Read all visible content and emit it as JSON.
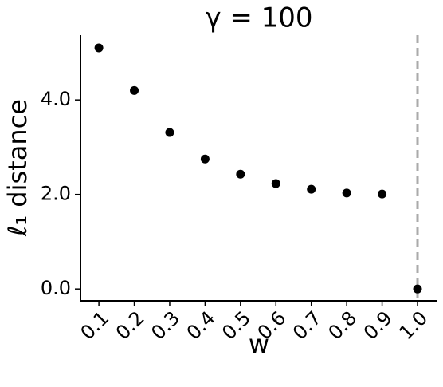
{
  "chart_data": {
    "type": "scatter",
    "title": "γ = 100",
    "xlabel": "w",
    "ylabel": "ℓ₁ distance",
    "x": [
      0.1,
      0.2,
      0.3,
      0.4,
      0.5,
      0.6,
      0.7,
      0.8,
      0.9,
      1.0
    ],
    "values": [
      5.1,
      4.2,
      3.31,
      2.75,
      2.43,
      2.23,
      2.11,
      2.03,
      2.01,
      0.0
    ],
    "color": "#000000",
    "xlim": [
      0.048,
      1.054
    ],
    "ylim": [
      -0.25,
      5.37
    ],
    "xticks": [
      0.1,
      0.2,
      0.3,
      0.4,
      0.5,
      0.6,
      0.7,
      0.8,
      0.9,
      {
        "value": 1.0,
        "label": "1.0"
      }
    ],
    "yticks": [
      {
        "value": 0,
        "label": "0.0"
      },
      {
        "value": 2,
        "label": "2.0"
      },
      {
        "value": 4,
        "label": "4.0"
      }
    ],
    "vline": 1.0,
    "vline_color": "#aaaaaa"
  }
}
